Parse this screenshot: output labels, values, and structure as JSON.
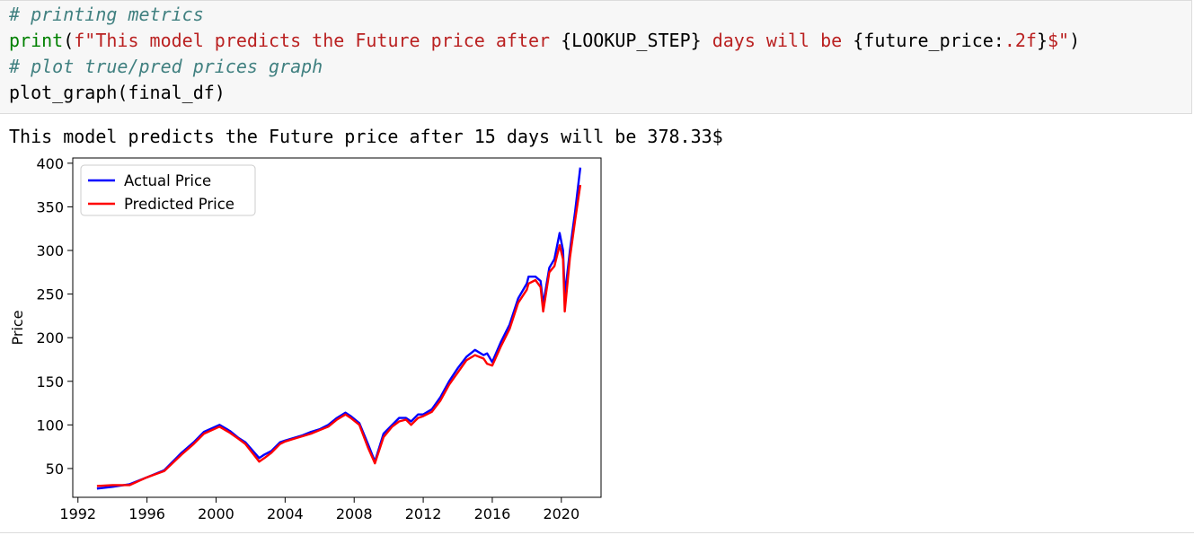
{
  "code_cell": {
    "lines": [
      [
        {
          "cls": "cmt",
          "text": "# printing metrics"
        }
      ],
      [
        {
          "cls": "kw",
          "text": "print"
        },
        {
          "cls": "plain",
          "text": "("
        },
        {
          "cls": "str",
          "text": "f\"This model predicts the Future price after "
        },
        {
          "cls": "plain",
          "text": "{LOOKUP_STEP}"
        },
        {
          "cls": "str",
          "text": " days will be "
        },
        {
          "cls": "plain",
          "text": "{future_price:"
        },
        {
          "cls": "str",
          "text": ".2f"
        },
        {
          "cls": "plain",
          "text": "}"
        },
        {
          "cls": "str",
          "text": "$\""
        },
        {
          "cls": "plain",
          "text": ")"
        }
      ],
      [
        {
          "cls": "cmt",
          "text": "# plot true/pred prices graph"
        }
      ],
      [
        {
          "cls": "plain",
          "text": "plot_graph(final_df)"
        }
      ]
    ]
  },
  "output": {
    "text": "This model predicts the Future price after 15 days will be 378.33$"
  },
  "colors": {
    "actual": "#0000ff",
    "predicted": "#ff0000"
  },
  "chart_data": {
    "type": "line",
    "title": "",
    "xlabel": "",
    "ylabel": "Price",
    "xlim": [
      1991.7,
      2022.3
    ],
    "ylim": [
      17,
      406
    ],
    "x_ticks": [
      "1992",
      "1996",
      "2000",
      "2004",
      "2008",
      "2012",
      "2016",
      "2020"
    ],
    "y_ticks": [
      "50",
      "100",
      "150",
      "200",
      "250",
      "300",
      "350",
      "400"
    ],
    "legend": {
      "position": "top-left"
    },
    "grid": false,
    "series": [
      {
        "name": "Actual Price",
        "x": [
          1993.1,
          1994.0,
          1995.0,
          1996.0,
          1997.0,
          1998.0,
          1998.7,
          1999.3,
          2000.2,
          2000.8,
          2001.3,
          2001.7,
          2002.5,
          2002.8,
          2003.2,
          2003.7,
          2004.0,
          2004.5,
          2005.0,
          2005.5,
          2006.0,
          2006.5,
          2007.0,
          2007.5,
          2007.8,
          2008.3,
          2008.8,
          2009.2,
          2009.7,
          2010.2,
          2010.6,
          2011.0,
          2011.3,
          2011.7,
          2012.0,
          2012.5,
          2013.0,
          2013.5,
          2014.0,
          2014.5,
          2015.0,
          2015.5,
          2015.7,
          2016.0,
          2016.5,
          2017.0,
          2017.5,
          2018.0,
          2018.1,
          2018.5,
          2018.8,
          2018.95,
          2019.3,
          2019.6,
          2019.9,
          2020.1,
          2020.2,
          2020.5,
          2020.8,
          2021.1
        ],
        "y": [
          27,
          29,
          32,
          40,
          48,
          68,
          80,
          92,
          100,
          93,
          85,
          80,
          62,
          66,
          70,
          80,
          82,
          85,
          88,
          92,
          95,
          100,
          108,
          114,
          110,
          102,
          78,
          58,
          90,
          100,
          108,
          108,
          104,
          112,
          112,
          118,
          132,
          150,
          165,
          178,
          186,
          180,
          182,
          172,
          195,
          215,
          245,
          262,
          270,
          270,
          265,
          238,
          280,
          290,
          320,
          300,
          248,
          300,
          345,
          395
        ]
      },
      {
        "name": "Predicted Price",
        "x": [
          1993.1,
          1994.0,
          1995.0,
          1996.0,
          1997.0,
          1998.0,
          1998.7,
          1999.3,
          2000.2,
          2000.8,
          2001.3,
          2001.7,
          2002.5,
          2002.8,
          2003.2,
          2003.7,
          2004.0,
          2004.5,
          2005.0,
          2005.5,
          2006.0,
          2006.5,
          2007.0,
          2007.5,
          2007.8,
          2008.3,
          2008.8,
          2009.2,
          2009.7,
          2010.2,
          2010.6,
          2011.0,
          2011.3,
          2011.7,
          2012.0,
          2012.5,
          2013.0,
          2013.5,
          2014.0,
          2014.5,
          2015.0,
          2015.5,
          2015.7,
          2016.0,
          2016.5,
          2017.0,
          2017.5,
          2018.0,
          2018.1,
          2018.5,
          2018.8,
          2018.95,
          2019.3,
          2019.6,
          2019.9,
          2020.1,
          2020.2,
          2020.5,
          2020.8,
          2021.1
        ],
        "y": [
          30,
          31,
          31,
          40,
          47,
          66,
          78,
          90,
          98,
          91,
          84,
          78,
          58,
          62,
          68,
          78,
          81,
          84,
          87,
          90,
          94,
          98,
          106,
          112,
          108,
          100,
          74,
          56,
          86,
          98,
          104,
          106,
          100,
          108,
          110,
          115,
          128,
          146,
          160,
          174,
          180,
          176,
          170,
          168,
          190,
          210,
          240,
          255,
          262,
          266,
          258,
          230,
          275,
          282,
          306,
          290,
          230,
          292,
          335,
          375
        ]
      }
    ]
  }
}
